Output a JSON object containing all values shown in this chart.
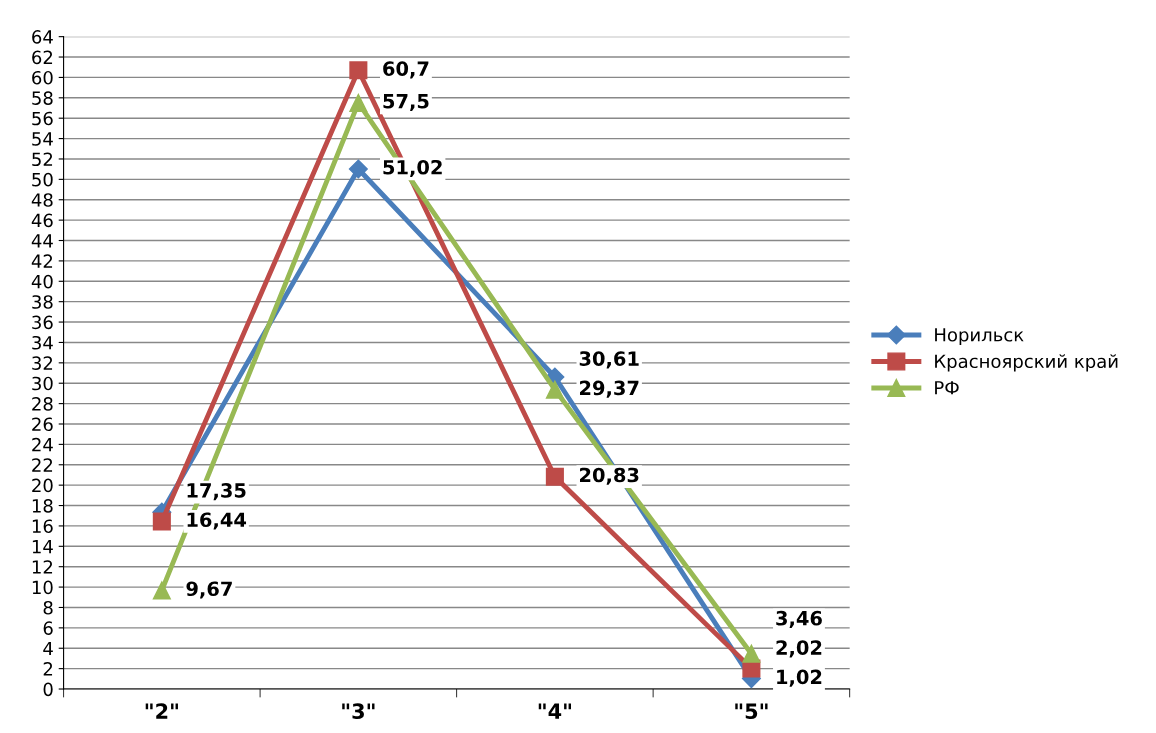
{
  "chart_data": {
    "type": "line",
    "categories": [
      "\"2\"",
      "\"3\"",
      "\"4\"",
      "\"5\""
    ],
    "series": [
      {
        "name": "Норильск",
        "color": "#4a7ebb",
        "marker": "diamond",
        "values": [
          17.35,
          51.02,
          30.61,
          1.02
        ],
        "value_labels": [
          "17,35",
          "51,02",
          "30,61",
          "1,02"
        ]
      },
      {
        "name": "Красноярский край",
        "color": "#be4b48",
        "marker": "square",
        "values": [
          16.44,
          60.7,
          20.83,
          2.02
        ],
        "value_labels": [
          "16,44",
          "60,7",
          "20,83",
          "2,02"
        ]
      },
      {
        "name": "РФ",
        "color": "#98b954",
        "marker": "triangle",
        "values": [
          9.67,
          57.5,
          29.37,
          3.46
        ],
        "value_labels": [
          "9,67",
          "57,5",
          "29,37",
          "3,46"
        ]
      }
    ],
    "ylim": [
      0,
      64
    ],
    "yticks": [
      0,
      2,
      4,
      6,
      8,
      10,
      12,
      14,
      16,
      18,
      20,
      22,
      24,
      26,
      28,
      30,
      32,
      34,
      36,
      38,
      40,
      42,
      44,
      46,
      48,
      50,
      52,
      54,
      56,
      58,
      60,
      62,
      64
    ],
    "grid": "y",
    "legend": "right",
    "line_style": "solid"
  }
}
